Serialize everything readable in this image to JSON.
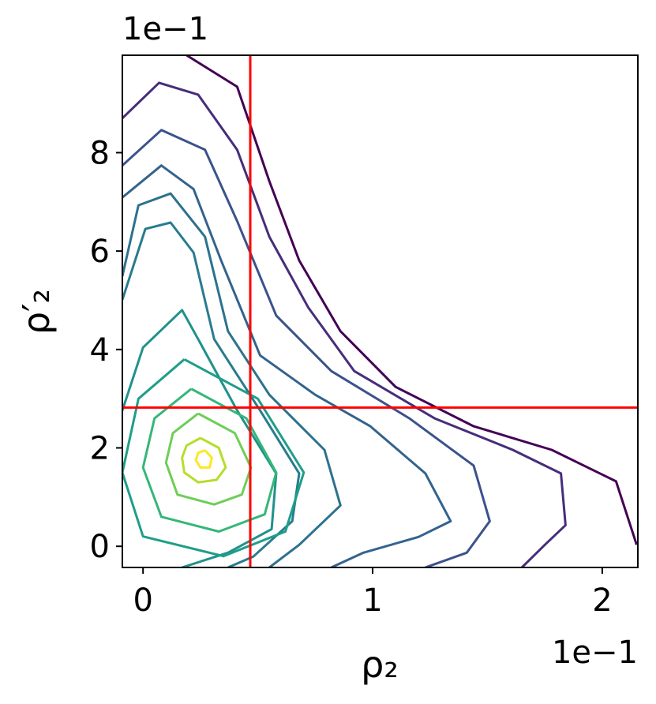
{
  "chart_data": {
    "type": "contour",
    "xlabel": "ρ₂",
    "ylabel": "ρ′₂",
    "x_offset_label": "1e−1",
    "y_offset_label": "1e−1",
    "xlim": [
      -0.09,
      2.155
    ],
    "ylim": [
      -0.43,
      9.98
    ],
    "xticks": [
      0,
      1,
      2
    ],
    "yticks": [
      0,
      2,
      4,
      6,
      8
    ],
    "series": [
      {
        "color": "#440154",
        "x": [
          0.19,
          0.41,
          0.55,
          0.68,
          0.86,
          1.1,
          1.44,
          1.78,
          2.06,
          2.15
        ],
        "y": [
          9.98,
          9.34,
          7.42,
          5.81,
          4.37,
          3.24,
          2.44,
          1.96,
          1.32,
          0.03
        ]
      },
      {
        "color": "#472d7b",
        "x": [
          -0.09,
          0.07,
          0.24,
          0.41,
          0.55,
          0.72,
          0.92,
          1.27,
          1.61,
          1.82,
          1.84,
          1.75,
          1.65
        ],
        "y": [
          8.7,
          9.42,
          9.18,
          8.06,
          6.29,
          4.85,
          3.56,
          2.6,
          1.96,
          1.48,
          0.43,
          0.03,
          -0.43
        ]
      },
      {
        "color": "#3b528b",
        "x": [
          -0.09,
          0.08,
          0.27,
          0.41,
          0.58,
          0.82,
          1.16,
          1.44,
          1.51,
          1.41,
          1.23
        ],
        "y": [
          7.74,
          8.46,
          8.06,
          6.61,
          4.69,
          3.56,
          2.6,
          1.64,
          0.51,
          -0.13,
          -0.43
        ]
      },
      {
        "color": "#33638d",
        "x": [
          -0.09,
          0.08,
          0.22,
          0.34,
          0.51,
          0.75,
          0.99,
          1.23,
          1.34,
          1.2,
          0.96,
          0.82
        ],
        "y": [
          7.09,
          7.74,
          7.26,
          5.81,
          3.88,
          3.08,
          2.44,
          1.48,
          0.51,
          0.19,
          -0.13,
          -0.43
        ]
      },
      {
        "color": "#2c728e",
        "x": [
          -0.09,
          -0.02,
          0.12,
          0.27,
          0.37,
          0.55,
          0.79,
          0.86,
          0.68,
          0.55
        ],
        "y": [
          5.49,
          6.93,
          7.17,
          6.29,
          4.37,
          3.08,
          1.96,
          0.83,
          0.03,
          -0.43
        ]
      },
      {
        "color": "#287c8e",
        "x": [
          -0.09,
          0.01,
          0.12,
          0.22,
          0.31,
          0.51,
          0.68,
          0.65,
          0.48,
          0.37
        ],
        "y": [
          5.01,
          6.45,
          6.58,
          5.97,
          4.21,
          2.76,
          1.48,
          0.51,
          -0.21,
          -0.43
        ]
      },
      {
        "color": "#21918c",
        "x": [
          -0.09,
          0.0,
          0.17,
          0.24,
          0.41,
          0.58,
          0.56,
          0.37,
          0.17
        ],
        "y": [
          2.76,
          4.04,
          4.8,
          4.21,
          2.76,
          1.48,
          0.35,
          -0.13,
          -0.43
        ]
      },
      {
        "color": "#1f9e89",
        "x": [
          0.18,
          0.5,
          0.7,
          0.62,
          0.35,
          0.0,
          -0.09,
          -0.02,
          0.18
        ],
        "y": [
          3.8,
          3.0,
          1.5,
          0.3,
          -0.2,
          0.2,
          1.5,
          3.0,
          3.8
        ]
      },
      {
        "color": "#35b779",
        "x": [
          0.21,
          0.45,
          0.58,
          0.53,
          0.33,
          0.08,
          0.0,
          0.05,
          0.21
        ],
        "y": [
          3.2,
          2.6,
          1.5,
          0.65,
          0.3,
          0.6,
          1.6,
          2.6,
          3.2
        ]
      },
      {
        "color": "#6ece58",
        "x": [
          0.24,
          0.4,
          0.47,
          0.43,
          0.31,
          0.15,
          0.1,
          0.13,
          0.24
        ],
        "y": [
          2.7,
          2.3,
          1.6,
          1.05,
          0.85,
          1.05,
          1.7,
          2.3,
          2.7
        ]
      },
      {
        "color": "#b5de2b",
        "x": [
          0.25,
          0.33,
          0.36,
          0.32,
          0.24,
          0.18,
          0.17,
          0.19,
          0.25
        ],
        "y": [
          2.2,
          2.0,
          1.6,
          1.35,
          1.3,
          1.5,
          1.8,
          2.05,
          2.2
        ]
      },
      {
        "color": "#fde725",
        "x": [
          0.27,
          0.3,
          0.29,
          0.25,
          0.23,
          0.24,
          0.27
        ],
        "y": [
          1.95,
          1.8,
          1.6,
          1.6,
          1.75,
          1.9,
          1.95
        ]
      }
    ],
    "vlines": [
      0.467
    ],
    "hlines": [
      2.82
    ],
    "ref_color": "#ff0000"
  }
}
